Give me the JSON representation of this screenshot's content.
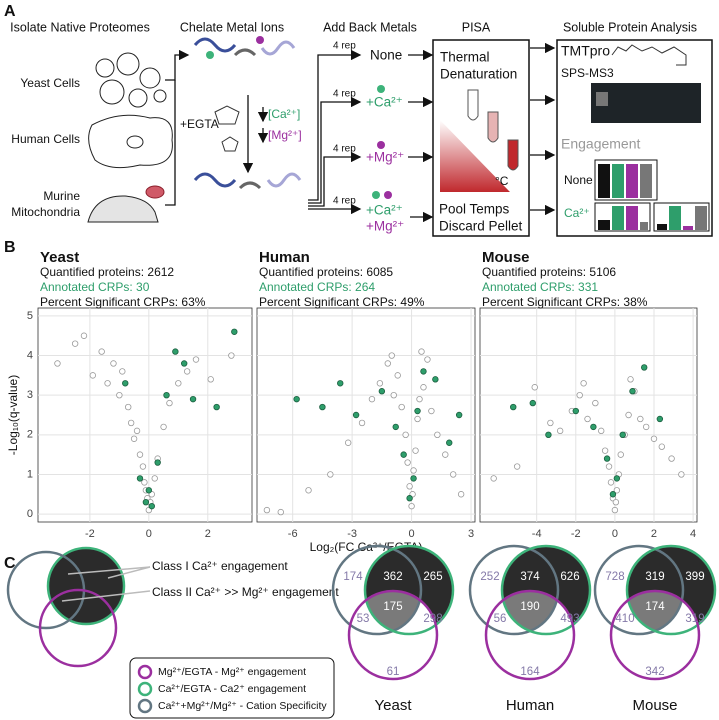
{
  "panel_a": {
    "letter": "A",
    "headers": [
      "Isolate Native Proteomes",
      "Chelate Metal Ions",
      "Add Back Metals",
      "PISA",
      "Soluble Protein Analysis"
    ],
    "yeast": "Yeast Cells",
    "human": "Human Cells",
    "murine": [
      "Murine",
      "Mitochondria"
    ],
    "egta": "+EGTA",
    "ca_down": "[Ca²⁺]",
    "mg_down": "[Mg²⁺]",
    "reps": [
      "4 rep",
      "4 rep",
      "4 rep",
      "4 rep"
    ],
    "none": "None",
    "ca": "+Ca²⁺",
    "mg": "+Mg²⁺",
    "camg": [
      "+Ca²⁺",
      "+Mg²⁺"
    ],
    "thermal": [
      "Thermal",
      "Denaturation"
    ],
    "deg": "°C",
    "pool": [
      "Pool Temps",
      "Discard Pellet"
    ],
    "tmt": "TMTpro",
    "sps": "SPS-MS3",
    "engagement": "Engagement",
    "eng_none": "None",
    "eng_ca": "Ca²⁺"
  },
  "panel_b": {
    "letter": "B"
  },
  "chart_data": [
    {
      "type": "scatter",
      "title": "Yeast",
      "annotations": [
        "Quantified proteins: 2612",
        "Annotated CRPs: 30",
        "Percent Significant CRPs: 63%"
      ],
      "ylabel": "-Log₁₀(q-value)",
      "xlim": [
        -3.76,
        3.5
      ],
      "xticks": [
        -2,
        0,
        2
      ],
      "ylim": [
        -0.2,
        5.2
      ],
      "yticks": [
        0,
        1,
        2,
        3,
        4,
        5
      ],
      "grid": true,
      "series": [
        {
          "color": "#9a9a9a",
          "x": [
            -3.1,
            -2.5,
            -2.2,
            -1.9,
            -1.6,
            -1.4,
            -1.2,
            -1.0,
            -0.9,
            -0.7,
            -0.6,
            -0.5,
            -0.4,
            -0.3,
            -0.2,
            -0.15,
            -0.1,
            -0.05,
            0,
            0.05,
            0.1,
            0.2,
            0.3,
            0.5,
            0.7,
            1.0,
            1.3,
            1.6,
            2.1,
            2.8
          ],
          "values": [
            3.8,
            4.3,
            4.5,
            3.5,
            4.1,
            3.3,
            3.8,
            3.0,
            3.6,
            2.7,
            2.3,
            1.9,
            2.1,
            1.5,
            1.2,
            0.8,
            0.6,
            0.4,
            0.1,
            0.3,
            0.5,
            0.9,
            1.4,
            2.2,
            2.8,
            3.3,
            3.6,
            3.9,
            3.4,
            4.0
          ]
        },
        {
          "color": "#2e9e6b",
          "x": [
            -0.8,
            -0.3,
            -0.1,
            0,
            0.1,
            0.3,
            0.6,
            0.9,
            1.2,
            1.5,
            2.3,
            2.9
          ],
          "values": [
            3.3,
            0.9,
            0.3,
            0.6,
            0.2,
            1.3,
            3.0,
            4.1,
            3.8,
            2.9,
            2.7,
            4.6
          ]
        }
      ]
    },
    {
      "type": "scatter",
      "title": "Human",
      "annotations": [
        "Quantified proteins: 6085",
        "Annotated CRPs: 264",
        "Percent Significant CRPs: 49%"
      ],
      "xlabel": "Log₂(FC Ca²⁺/EGTA)",
      "xlim": [
        -7.8,
        3.2
      ],
      "xticks": [
        -6,
        -3,
        0,
        3
      ],
      "ylim": [
        -0.2,
        5.2
      ],
      "yticks": [
        0,
        1,
        2,
        3,
        4,
        5
      ],
      "grid": true,
      "series": [
        {
          "color": "#9a9a9a",
          "x": [
            -7.3,
            -6.6,
            -5.2,
            -4.1,
            -3.2,
            -2.5,
            -2.0,
            -1.6,
            -1.2,
            -0.9,
            -0.7,
            -0.5,
            -0.3,
            -0.2,
            -0.1,
            0,
            0.05,
            0.1,
            0.2,
            0.3,
            0.4,
            0.6,
            0.8,
            1.0,
            1.3,
            1.7,
            2.1,
            2.5,
            -1.0,
            0.5
          ],
          "values": [
            0.1,
            0.05,
            0.6,
            1.0,
            1.8,
            2.3,
            2.9,
            3.3,
            3.8,
            3.0,
            3.5,
            2.7,
            2.0,
            1.3,
            0.7,
            0.2,
            0.5,
            1.1,
            1.6,
            2.4,
            2.9,
            3.2,
            3.9,
            2.6,
            2.0,
            1.5,
            1.0,
            0.5,
            4.0,
            4.1
          ]
        },
        {
          "color": "#2e9e6b",
          "x": [
            -5.8,
            -4.5,
            -3.6,
            -2.8,
            -1.5,
            -0.8,
            -0.4,
            -0.1,
            0.1,
            0.3,
            0.6,
            1.2,
            1.9,
            2.4
          ],
          "values": [
            2.9,
            2.7,
            3.3,
            2.5,
            3.1,
            2.2,
            1.5,
            0.4,
            0.9,
            2.6,
            3.6,
            3.4,
            1.8,
            2.5
          ]
        }
      ]
    },
    {
      "type": "scatter",
      "title": "Mouse",
      "annotations": [
        "Quantified proteins: 5106",
        "Annotated CRPs: 331",
        "Percent Significant CRPs: 38%"
      ],
      "xlim": [
        -6.9,
        4.2
      ],
      "xticks": [
        -4,
        -2,
        0,
        2,
        4
      ],
      "ylim": [
        -0.2,
        5.2
      ],
      "yticks": [
        0,
        1,
        2,
        3,
        4,
        5
      ],
      "grid": true,
      "series": [
        {
          "color": "#9a9a9a",
          "x": [
            -6.2,
            -5.0,
            -4.1,
            -3.3,
            -2.8,
            -2.2,
            -1.8,
            -1.4,
            -1.0,
            -0.7,
            -0.5,
            -0.3,
            -0.2,
            -0.1,
            0,
            0.05,
            0.1,
            0.2,
            0.3,
            0.5,
            0.7,
            1.0,
            1.3,
            1.6,
            2.0,
            2.4,
            2.9,
            3.4,
            -1.6,
            0.8
          ],
          "values": [
            0.9,
            1.2,
            3.2,
            2.3,
            2.1,
            2.6,
            3.0,
            2.4,
            2.8,
            2.1,
            1.6,
            1.2,
            0.8,
            0.4,
            0.1,
            0.3,
            0.6,
            1.0,
            1.5,
            2.0,
            2.5,
            3.1,
            2.4,
            2.2,
            1.9,
            1.7,
            1.4,
            1.0,
            3.3,
            3.4
          ]
        },
        {
          "color": "#2e9e6b",
          "x": [
            -5.2,
            -4.2,
            -3.4,
            -2.0,
            -1.1,
            -0.4,
            -0.1,
            0.1,
            0.4,
            0.9,
            1.5,
            2.3
          ],
          "values": [
            2.7,
            2.8,
            2.0,
            2.6,
            2.2,
            1.4,
            0.5,
            0.9,
            2.0,
            3.1,
            3.7,
            2.4
          ]
        }
      ]
    }
  ],
  "panel_c": {
    "letter": "C",
    "class1": "Class I Ca²⁺ engagement",
    "class2": "Class II Ca²⁺ >> Mg²⁺ engagement",
    "legend": [
      {
        "label": "Mg²⁺/EGTA - Mg²⁺ engagement",
        "color": "#9b2f9f"
      },
      {
        "label": "Ca²⁺/EGTA - Ca2⁺ engagement",
        "color": "#3db37a"
      },
      {
        "label": "Ca²⁺+Mg²⁺/Mg²⁺ - Cation Specificity",
        "color": "#627682"
      }
    ],
    "venns": [
      {
        "label": "Yeast",
        "regions": [
          174,
          362,
          265,
          175,
          53,
          298,
          61
        ]
      },
      {
        "label": "Human",
        "regions": [
          252,
          374,
          626,
          190,
          56,
          493,
          164
        ]
      },
      {
        "label": "Mouse",
        "regions": [
          728,
          319,
          399,
          174,
          410,
          319,
          342
        ]
      }
    ]
  }
}
